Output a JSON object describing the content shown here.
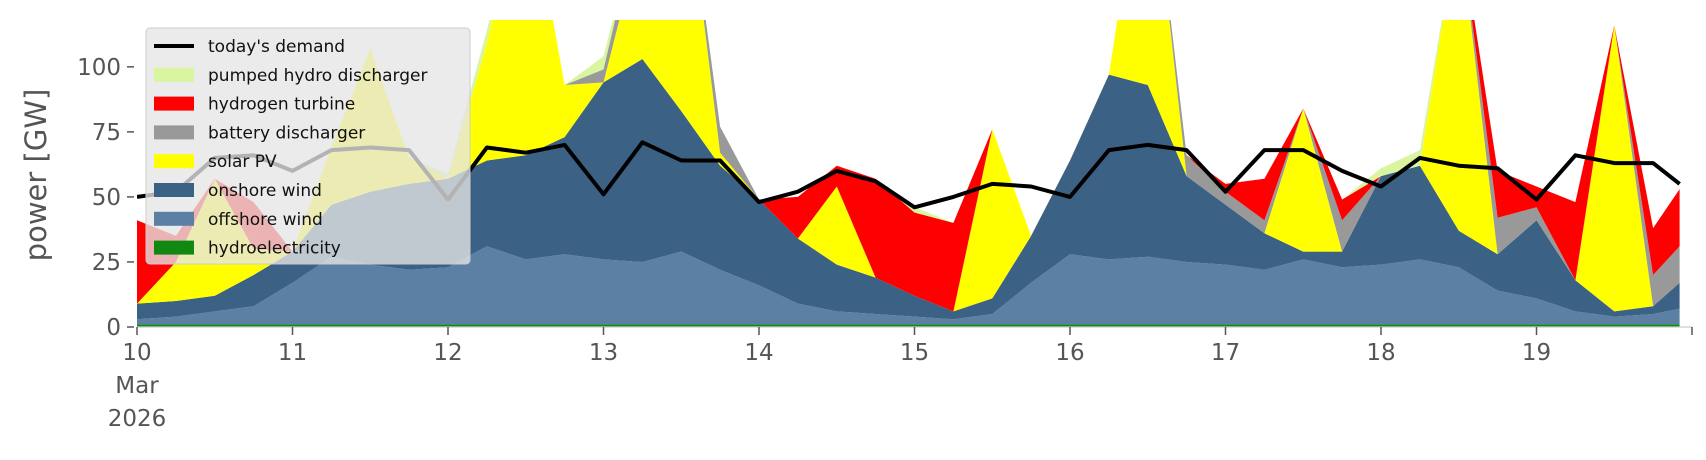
{
  "chart_data": {
    "type": "area",
    "title": "",
    "xlabel": "",
    "ylabel": "power [GW]",
    "ylim": [
      0,
      118
    ],
    "xlim": [
      "2026-03-10",
      "2026-03-20"
    ],
    "grid": false,
    "legend_position": "top-left",
    "yticks": [
      0,
      25,
      50,
      75,
      100
    ],
    "x_ticks": [
      {
        "lines": [
          "10",
          "Mar",
          "2026"
        ],
        "day": 10
      },
      {
        "lines": [
          "11"
        ],
        "day": 11
      },
      {
        "lines": [
          "12"
        ],
        "day": 12
      },
      {
        "lines": [
          "13"
        ],
        "day": 13
      },
      {
        "lines": [
          "14"
        ],
        "day": 14
      },
      {
        "lines": [
          "15"
        ],
        "day": 15
      },
      {
        "lines": [
          "16"
        ],
        "day": 16
      },
      {
        "lines": [
          "17"
        ],
        "day": 17
      },
      {
        "lines": [
          "18"
        ],
        "day": 18
      },
      {
        "lines": [
          "19"
        ],
        "day": 19
      }
    ],
    "x_days": [
      10.0,
      10.25,
      10.5,
      10.75,
      11.0,
      11.25,
      11.5,
      11.75,
      12.0,
      12.25,
      12.5,
      12.75,
      13.0,
      13.25,
      13.5,
      13.75,
      14.0,
      14.25,
      14.5,
      14.75,
      15.0,
      15.25,
      15.5,
      15.75,
      16.0,
      16.25,
      16.5,
      16.75,
      17.0,
      17.25,
      17.5,
      17.75,
      18.0,
      18.25,
      18.5,
      18.75,
      19.0,
      19.25,
      19.5,
      19.75,
      19.92
    ],
    "series": [
      {
        "name": "hydroelectricity",
        "color": "#118811",
        "values": [
          1,
          1,
          1,
          1,
          1,
          1,
          1,
          1,
          1,
          1,
          1,
          1,
          1,
          1,
          1,
          1,
          1,
          1,
          1,
          1,
          1,
          1,
          1,
          1,
          1,
          1,
          1,
          1,
          1,
          1,
          1,
          1,
          1,
          1,
          1,
          1,
          1,
          1,
          1,
          1,
          1
        ]
      },
      {
        "name": "offshore wind",
        "color": "#5b80a3",
        "values": [
          2,
          3,
          5,
          7,
          16,
          26,
          23,
          21,
          22,
          30,
          25,
          27,
          25,
          24,
          28,
          21,
          15,
          8,
          5,
          4,
          3,
          2,
          4,
          16,
          27,
          25,
          26,
          24,
          23,
          21,
          25,
          22,
          23,
          25,
          22,
          13,
          10,
          5,
          3,
          4,
          6
        ]
      },
      {
        "name": "onshore wind",
        "color": "#3b6184",
        "values": [
          6,
          6,
          6,
          12,
          12,
          20,
          28,
          33,
          34,
          33,
          40,
          45,
          68,
          78,
          54,
          40,
          33,
          25,
          18,
          14,
          8,
          3,
          6,
          18,
          36,
          71,
          66,
          33,
          23,
          14,
          3,
          6,
          34,
          36,
          14,
          14,
          30,
          12,
          2,
          3,
          10
        ]
      },
      {
        "name": "solar PV",
        "color": "#ffff00",
        "values": [
          0,
          15,
          45,
          10,
          0,
          22,
          55,
          10,
          0,
          45,
          110,
          20,
          0,
          50,
          105,
          5,
          0,
          0,
          30,
          0,
          0,
          0,
          65,
          0,
          0,
          0,
          100,
          0,
          0,
          0,
          55,
          0,
          0,
          0,
          120,
          0,
          0,
          0,
          110,
          0,
          0
        ]
      },
      {
        "name": "battery discharger",
        "color": "#999999",
        "values": [
          0,
          0,
          0,
          0,
          0,
          0,
          0,
          0,
          0,
          0,
          0,
          0,
          5,
          10,
          0,
          10,
          0,
          0,
          0,
          0,
          0,
          0,
          0,
          0,
          0,
          0,
          0,
          8,
          5,
          5,
          0,
          12,
          0,
          0,
          0,
          14,
          5,
          0,
          0,
          12,
          14
        ]
      },
      {
        "name": "hydrogen turbine",
        "color": "#ff0000",
        "values": [
          32,
          10,
          0,
          18,
          0,
          0,
          0,
          0,
          0,
          0,
          0,
          0,
          0,
          0,
          0,
          0,
          0,
          16,
          8,
          38,
          32,
          34,
          0,
          0,
          0,
          0,
          0,
          0,
          3,
          16,
          0,
          8,
          0,
          0,
          0,
          18,
          8,
          30,
          0,
          18,
          22
        ]
      },
      {
        "name": "pumped hydro discharger",
        "color": "#d9f59f",
        "values": [
          0,
          0,
          0,
          0,
          0,
          0,
          0,
          0,
          2,
          5,
          0,
          0,
          5,
          0,
          0,
          0,
          0,
          0,
          0,
          0,
          2,
          0,
          0,
          0,
          0,
          0,
          0,
          0,
          0,
          0,
          0,
          0,
          3,
          6,
          0,
          0,
          0,
          0,
          0,
          0,
          0
        ]
      }
    ],
    "demand": {
      "name": "today's demand",
      "color": "#000000",
      "values": [
        50,
        52,
        65,
        66,
        60,
        68,
        69,
        68,
        49,
        69,
        67,
        70,
        51,
        71,
        64,
        64,
        48,
        52,
        60,
        56,
        46,
        50,
        55,
        54,
        50,
        68,
        70,
        68,
        52,
        68,
        68,
        60,
        54,
        65,
        62,
        61,
        49,
        66,
        63,
        63,
        55
      ]
    },
    "legend": [
      {
        "label": "today's demand",
        "kind": "line",
        "color": "#000000"
      },
      {
        "label": "pumped hydro discharger",
        "kind": "patch",
        "color": "#d9f59f"
      },
      {
        "label": "hydrogen turbine",
        "kind": "patch",
        "color": "#ff0000"
      },
      {
        "label": "battery discharger",
        "kind": "patch",
        "color": "#999999"
      },
      {
        "label": "solar PV",
        "kind": "patch",
        "color": "#ffff00"
      },
      {
        "label": "onshore wind",
        "kind": "patch",
        "color": "#3b6184"
      },
      {
        "label": "offshore wind",
        "kind": "patch",
        "color": "#5b80a3"
      },
      {
        "label": "hydroelectricity",
        "kind": "patch",
        "color": "#118811"
      }
    ]
  }
}
